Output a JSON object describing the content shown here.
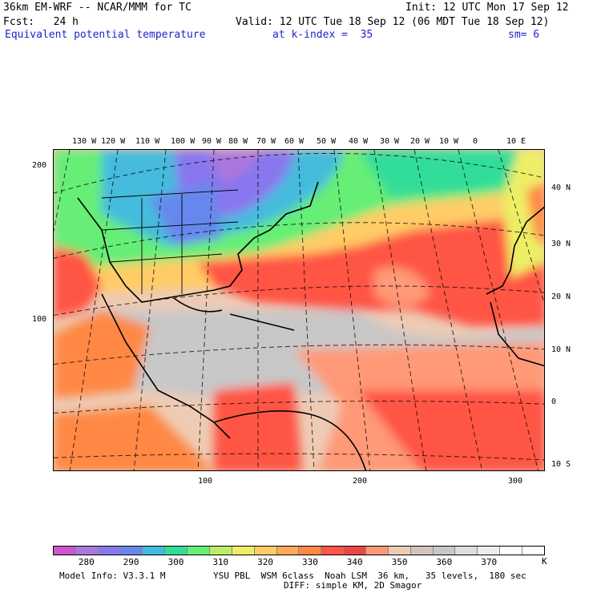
{
  "header": {
    "model_title": "36km EM-WRF -- NCAR/MMM for TC",
    "init": "Init: 12 UTC Mon 17 Sep 12",
    "fcst": "Fcst:   24 h",
    "valid": "Valid: 12 UTC Tue 18 Sep 12 (06 MDT Tue 18 Sep 12)",
    "field": "Equivalent potential temperature",
    "level": "at k-index =  35",
    "smooth": "sm= 6"
  },
  "map": {
    "lon_labels": [
      "130 W",
      "120 W",
      "110 W",
      "100 W",
      "90 W",
      "80 W",
      "70 W",
      "60 W",
      "50 W",
      "40 W",
      "30 W",
      "20 W",
      "10 W",
      "0",
      "10 E"
    ],
    "lat_labels": [
      "40 N",
      "30 N",
      "20 N",
      "10 N",
      "0",
      "10 S"
    ],
    "grid_y_labels": [
      "200",
      "100"
    ],
    "grid_x_labels": [
      "100",
      "200",
      "300"
    ]
  },
  "colorbar": {
    "colors": [
      "#cc55cc",
      "#aa77dd",
      "#8877ee",
      "#6688ee",
      "#44bbdd",
      "#33dd99",
      "#66ee77",
      "#bbee66",
      "#eeee66",
      "#ffcc66",
      "#ffaa55",
      "#ff8844",
      "#ff5544",
      "#ee4444",
      "#ff9977",
      "#eecbb4",
      "#d2c5bd",
      "#c8c8c8",
      "#dddddd",
      "#eeeeee",
      "#ffffff",
      "#ffffff"
    ],
    "labels": [
      "280",
      "290",
      "300",
      "310",
      "320",
      "330",
      "340",
      "350",
      "360",
      "370"
    ],
    "unit": "K"
  },
  "footer": {
    "model_info": "Model Info: V3.3.1 M",
    "physics": "YSU PBL  WSM 6class  Noah LSM  36 km,   35 levels,  180 sec",
    "diffusion": "DIFF: simple KM, 2D Smagor"
  }
}
